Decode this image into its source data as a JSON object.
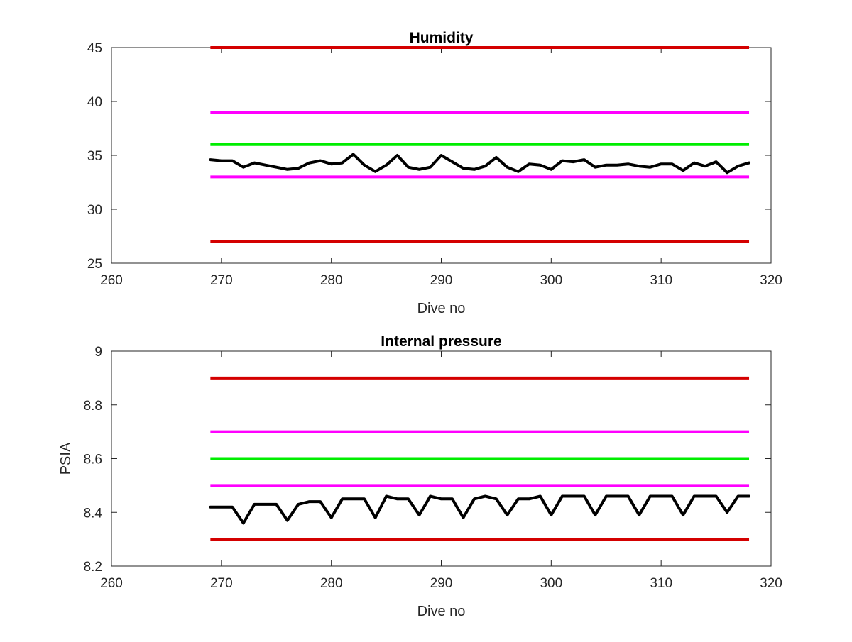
{
  "chart_data": [
    {
      "type": "line",
      "title": "Humidity",
      "xlabel": "Dive no",
      "ylabel": "",
      "xlim": [
        260,
        320
      ],
      "ylim": [
        25,
        45
      ],
      "xticks": [
        "260",
        "270",
        "280",
        "290",
        "300",
        "310",
        "320"
      ],
      "yticks": [
        "25",
        "30",
        "35",
        "40",
        "45"
      ],
      "grid": false,
      "colors": {
        "limit_outer": "#d40000",
        "limit_inner": "#ff00ff",
        "nominal": "#00ee00",
        "data": "#000000"
      },
      "reference_lines": [
        {
          "color": "#d40000",
          "y": 45,
          "x_start": 269,
          "x_end": 318
        },
        {
          "color": "#ff00ff",
          "y": 39,
          "x_start": 269,
          "x_end": 318
        },
        {
          "color": "#00ee00",
          "y": 36,
          "x_start": 269,
          "x_end": 318
        },
        {
          "color": "#ff00ff",
          "y": 33,
          "x_start": 269,
          "x_end": 318
        },
        {
          "color": "#d40000",
          "y": 27,
          "x_start": 269,
          "x_end": 318
        }
      ],
      "series": [
        {
          "color": "#000000",
          "x": [
            269,
            270,
            271,
            272,
            273,
            274,
            275,
            276,
            277,
            278,
            279,
            280,
            281,
            282,
            283,
            284,
            285,
            286,
            287,
            288,
            289,
            290,
            291,
            292,
            293,
            294,
            295,
            296,
            297,
            298,
            299,
            300,
            301,
            302,
            303,
            304,
            305,
            306,
            307,
            308,
            309,
            310,
            311,
            312,
            313,
            314,
            315,
            316,
            317,
            318
          ],
          "values": [
            34.6,
            34.5,
            34.5,
            33.9,
            34.3,
            34.1,
            33.9,
            33.7,
            33.8,
            34.3,
            34.5,
            34.2,
            34.3,
            35.1,
            34.1,
            33.5,
            34.1,
            35.0,
            33.9,
            33.7,
            33.9,
            35.0,
            34.4,
            33.8,
            33.7,
            34.0,
            34.8,
            33.9,
            33.5,
            34.2,
            34.1,
            33.7,
            34.5,
            34.4,
            34.6,
            33.9,
            34.1,
            34.1,
            34.2,
            34.0,
            33.9,
            34.2,
            34.2,
            33.6,
            34.3,
            34.0,
            34.4,
            33.4,
            34.0,
            34.3
          ]
        }
      ]
    },
    {
      "type": "line",
      "title": "Internal pressure",
      "xlabel": "Dive no",
      "ylabel": "PSIA",
      "xlim": [
        260,
        320
      ],
      "ylim": [
        8.2,
        9
      ],
      "xticks": [
        "260",
        "270",
        "280",
        "290",
        "300",
        "310",
        "320"
      ],
      "yticks": [
        "8.2",
        "8.4",
        "8.6",
        "8.8",
        "9"
      ],
      "grid": false,
      "colors": {
        "limit_outer": "#d40000",
        "limit_inner": "#ff00ff",
        "nominal": "#00ee00",
        "data": "#000000"
      },
      "reference_lines": [
        {
          "color": "#d40000",
          "y": 8.9,
          "x_start": 269,
          "x_end": 318
        },
        {
          "color": "#ff00ff",
          "y": 8.7,
          "x_start": 269,
          "x_end": 318
        },
        {
          "color": "#00ee00",
          "y": 8.6,
          "x_start": 269,
          "x_end": 318
        },
        {
          "color": "#ff00ff",
          "y": 8.5,
          "x_start": 269,
          "x_end": 318
        },
        {
          "color": "#d40000",
          "y": 8.3,
          "x_start": 269,
          "x_end": 318
        }
      ],
      "series": [
        {
          "color": "#000000",
          "x": [
            269,
            270,
            271,
            272,
            273,
            274,
            275,
            276,
            277,
            278,
            279,
            280,
            281,
            282,
            283,
            284,
            285,
            286,
            287,
            288,
            289,
            290,
            291,
            292,
            293,
            294,
            295,
            296,
            297,
            298,
            299,
            300,
            301,
            302,
            303,
            304,
            305,
            306,
            307,
            308,
            309,
            310,
            311,
            312,
            313,
            314,
            315,
            316,
            317,
            318
          ],
          "values": [
            8.42,
            8.42,
            8.42,
            8.36,
            8.43,
            8.43,
            8.43,
            8.37,
            8.43,
            8.44,
            8.44,
            8.38,
            8.45,
            8.45,
            8.45,
            8.38,
            8.46,
            8.45,
            8.45,
            8.39,
            8.46,
            8.45,
            8.45,
            8.38,
            8.45,
            8.46,
            8.45,
            8.39,
            8.45,
            8.45,
            8.46,
            8.39,
            8.46,
            8.46,
            8.46,
            8.39,
            8.46,
            8.46,
            8.46,
            8.39,
            8.46,
            8.46,
            8.46,
            8.39,
            8.46,
            8.46,
            8.46,
            8.4,
            8.46,
            8.46
          ]
        }
      ]
    }
  ]
}
